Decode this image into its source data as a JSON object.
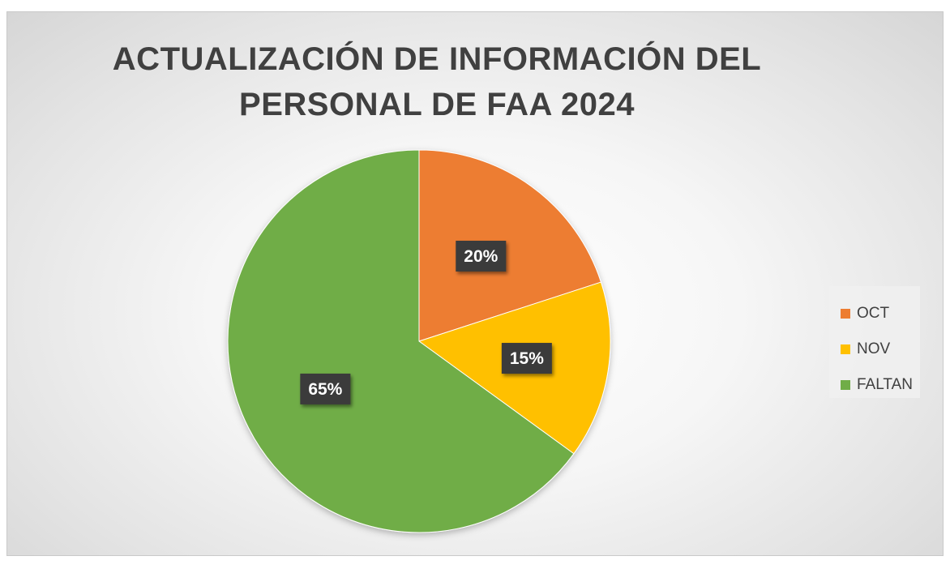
{
  "chart_data": {
    "type": "pie",
    "title_lines": [
      "ACTUALIZACIÓN DE INFORMACIÓN DEL",
      "PERSONAL DE FAA 2024"
    ],
    "categories": [
      "OCT",
      "NOV",
      "FALTAN"
    ],
    "values": [
      20,
      15,
      65
    ],
    "data_labels": [
      "20%",
      "15%",
      "65%"
    ],
    "colors": [
      "#ed7d31",
      "#ffc000",
      "#70ad47"
    ],
    "legend_position": "right"
  }
}
